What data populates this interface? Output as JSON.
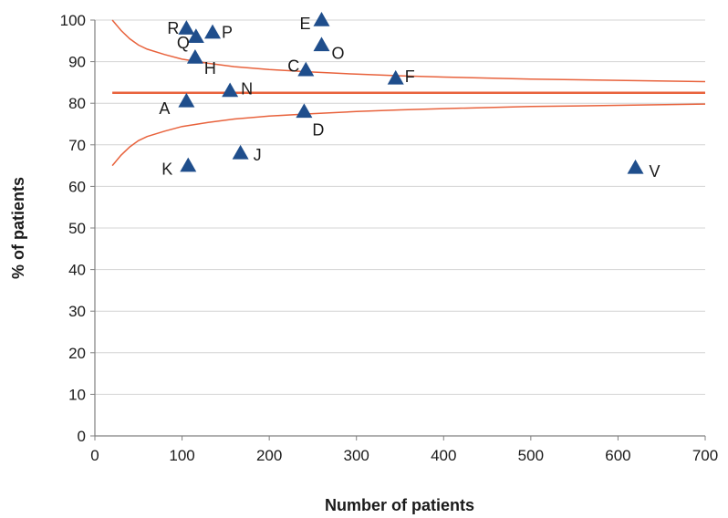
{
  "chart_data": {
    "type": "scatter",
    "title": "",
    "xlabel": "Number of patients",
    "ylabel": "% of patients",
    "xlim": [
      0,
      700
    ],
    "ylim": [
      0,
      100
    ],
    "xticks": [
      0,
      100,
      200,
      300,
      400,
      500,
      600,
      700
    ],
    "yticks": [
      0,
      10,
      20,
      30,
      40,
      50,
      60,
      70,
      80,
      90,
      100
    ],
    "grid": "horizontal",
    "legend": "none",
    "marker": "triangle",
    "points": [
      {
        "label": "R",
        "x": 105,
        "y": 98
      },
      {
        "label": "Q",
        "x": 116,
        "y": 96
      },
      {
        "label": "P",
        "x": 135,
        "y": 97
      },
      {
        "label": "H",
        "x": 115,
        "y": 91
      },
      {
        "label": "E",
        "x": 260,
        "y": 100
      },
      {
        "label": "O",
        "x": 260,
        "y": 94
      },
      {
        "label": "C",
        "x": 242,
        "y": 88
      },
      {
        "label": "F",
        "x": 345,
        "y": 86
      },
      {
        "label": "N",
        "x": 155,
        "y": 83
      },
      {
        "label": "A",
        "x": 105,
        "y": 80.5
      },
      {
        "label": "D",
        "x": 240,
        "y": 78
      },
      {
        "label": "J",
        "x": 167,
        "y": 68
      },
      {
        "label": "K",
        "x": 107,
        "y": 65
      },
      {
        "label": "V",
        "x": 620,
        "y": 64.5
      }
    ],
    "mean": 82.5,
    "upper_limit": {
      "x": [
        20,
        30,
        40,
        50,
        60,
        80,
        100,
        130,
        160,
        200,
        250,
        300,
        350,
        400,
        500,
        600,
        700
      ],
      "y": [
        100,
        97.5,
        95.5,
        94,
        93,
        91.7,
        90.6,
        89.6,
        88.8,
        88.1,
        87.5,
        87,
        86.6,
        86.3,
        85.8,
        85.5,
        85.2
      ]
    },
    "lower_limit": {
      "x": [
        20,
        30,
        40,
        50,
        60,
        80,
        100,
        130,
        160,
        200,
        250,
        300,
        350,
        400,
        500,
        600,
        700
      ],
      "y": [
        65,
        67.5,
        69.5,
        71,
        72,
        73.3,
        74.4,
        75.4,
        76.2,
        76.9,
        77.5,
        78,
        78.4,
        78.7,
        79.2,
        79.5,
        79.8
      ]
    },
    "colors": {
      "marker": "#1f4e8c",
      "limit_line": "#e8623c",
      "mean_line": "#e8623c",
      "grid": "#d4d4d4",
      "axis": "#808080"
    }
  }
}
